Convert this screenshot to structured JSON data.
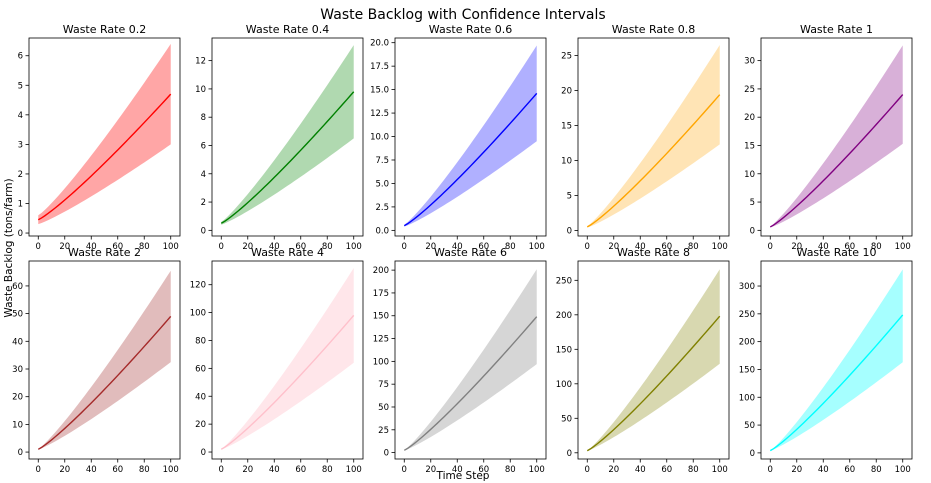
{
  "figure": {
    "title": "Waste Backlog with Confidence Intervals",
    "xlabel": "Time Step",
    "ylabel": "Waste Backlog (tons/farm)"
  },
  "chart_data": [
    {
      "type": "line",
      "title": "Waste Rate 0.2",
      "color": "#ff0000",
      "fill_color": "#ffa6a6",
      "x": [
        0,
        100
      ],
      "mean": [
        0.45,
        4.7
      ],
      "lower": [
        0.3,
        3.0
      ],
      "upper": [
        0.6,
        6.4
      ],
      "xlim": [
        -7,
        107
      ],
      "ylim": [
        -0.1,
        6.6
      ],
      "xticks": [
        0,
        20,
        40,
        60,
        80,
        100
      ],
      "yticks": [
        0,
        1,
        2,
        3,
        4,
        5,
        6
      ]
    },
    {
      "type": "line",
      "title": "Waste Rate 0.4",
      "color": "#008000",
      "fill_color": "#b0d9b0",
      "x": [
        0,
        100
      ],
      "mean": [
        0.5,
        9.8
      ],
      "lower": [
        0.4,
        6.5
      ],
      "upper": [
        0.6,
        13.1
      ],
      "xlim": [
        -7,
        107
      ],
      "ylim": [
        -0.4,
        13.6
      ],
      "xticks": [
        0,
        20,
        40,
        60,
        80,
        100
      ],
      "yticks": [
        0,
        2,
        4,
        6,
        8,
        10,
        12
      ]
    },
    {
      "type": "line",
      "title": "Waste Rate 0.6",
      "color": "#0000ff",
      "fill_color": "#b0b0ff",
      "x": [
        0,
        100
      ],
      "mean": [
        0.5,
        14.6
      ],
      "lower": [
        0.4,
        9.5
      ],
      "upper": [
        0.6,
        19.7
      ],
      "xlim": [
        -7,
        107
      ],
      "ylim": [
        -0.6,
        20.5
      ],
      "xticks": [
        0,
        20,
        40,
        60,
        80,
        100
      ],
      "yticks": [
        0.0,
        2.5,
        5.0,
        7.5,
        10.0,
        12.5,
        15.0,
        17.5,
        20.0
      ]
    },
    {
      "type": "line",
      "title": "Waste Rate 0.8",
      "color": "#ffa500",
      "fill_color": "#ffe4b5",
      "x": [
        0,
        100
      ],
      "mean": [
        0.5,
        19.4
      ],
      "lower": [
        0.4,
        12.3
      ],
      "upper": [
        0.6,
        26.5
      ],
      "xlim": [
        -7,
        107
      ],
      "ylim": [
        -0.8,
        27.5
      ],
      "xticks": [
        0,
        20,
        40,
        60,
        80,
        100
      ],
      "yticks": [
        0,
        5,
        10,
        15,
        20,
        25
      ]
    },
    {
      "type": "line",
      "title": "Waste Rate 1",
      "color": "#800080",
      "fill_color": "#d8b0d8",
      "x": [
        0,
        100
      ],
      "mean": [
        0.6,
        24.0
      ],
      "lower": [
        0.5,
        15.3
      ],
      "upper": [
        0.7,
        32.7
      ],
      "xlim": [
        -7,
        107
      ],
      "ylim": [
        -1.0,
        34.0
      ],
      "xticks": [
        0,
        20,
        40,
        60,
        80,
        100
      ],
      "yticks": [
        0,
        5,
        10,
        15,
        20,
        25,
        30
      ]
    },
    {
      "type": "line",
      "title": "Waste Rate 2",
      "color": "#a52a2a",
      "fill_color": "#e1bcbc",
      "x": [
        0,
        100
      ],
      "mean": [
        1.0,
        49.0
      ],
      "lower": [
        0.9,
        32.5
      ],
      "upper": [
        1.1,
        65.5
      ],
      "xlim": [
        -7,
        107
      ],
      "ylim": [
        -2.5,
        69
      ],
      "xticks": [
        0,
        20,
        40,
        60,
        80,
        100
      ],
      "yticks": [
        0,
        10,
        20,
        30,
        40,
        50,
        60
      ]
    },
    {
      "type": "line",
      "title": "Waste Rate 4",
      "color": "#ffc0cb",
      "fill_color": "#ffe6ea",
      "x": [
        0,
        100
      ],
      "mean": [
        2.0,
        98.0
      ],
      "lower": [
        1.8,
        64.0
      ],
      "upper": [
        2.2,
        132.0
      ],
      "xlim": [
        -7,
        107
      ],
      "ylim": [
        -5,
        137
      ],
      "xticks": [
        0,
        20,
        40,
        60,
        80,
        100
      ],
      "yticks": [
        0,
        20,
        40,
        60,
        80,
        100,
        120
      ]
    },
    {
      "type": "line",
      "title": "Waste Rate 6",
      "color": "#808080",
      "fill_color": "#d6d6d6",
      "x": [
        0,
        100
      ],
      "mean": [
        2.5,
        149.0
      ],
      "lower": [
        2.3,
        97.0
      ],
      "upper": [
        2.7,
        201.0
      ],
      "xlim": [
        -7,
        107
      ],
      "ylim": [
        -7,
        210
      ],
      "xticks": [
        0,
        20,
        40,
        60,
        80,
        100
      ],
      "yticks": [
        0,
        25,
        50,
        75,
        100,
        125,
        150,
        175,
        200
      ]
    },
    {
      "type": "line",
      "title": "Waste Rate 8",
      "color": "#808000",
      "fill_color": "#d8d8b0",
      "x": [
        0,
        100
      ],
      "mean": [
        3.0,
        198.0
      ],
      "lower": [
        2.8,
        129.0
      ],
      "upper": [
        3.2,
        266.0
      ],
      "xlim": [
        -7,
        107
      ],
      "ylim": [
        -9,
        278
      ],
      "xticks": [
        0,
        20,
        40,
        60,
        80,
        100
      ],
      "yticks": [
        0,
        50,
        100,
        150,
        200,
        250
      ]
    },
    {
      "type": "line",
      "title": "Waste Rate 10",
      "color": "#00ffff",
      "fill_color": "#a6ffff",
      "x": [
        0,
        100
      ],
      "mean": [
        4.0,
        248.0
      ],
      "lower": [
        3.8,
        163.0
      ],
      "upper": [
        4.2,
        330.0
      ],
      "xlim": [
        -7,
        107
      ],
      "ylim": [
        -11,
        345
      ],
      "xticks": [
        0,
        20,
        40,
        60,
        80,
        100
      ],
      "yticks": [
        0,
        50,
        100,
        150,
        200,
        250,
        300
      ]
    }
  ]
}
